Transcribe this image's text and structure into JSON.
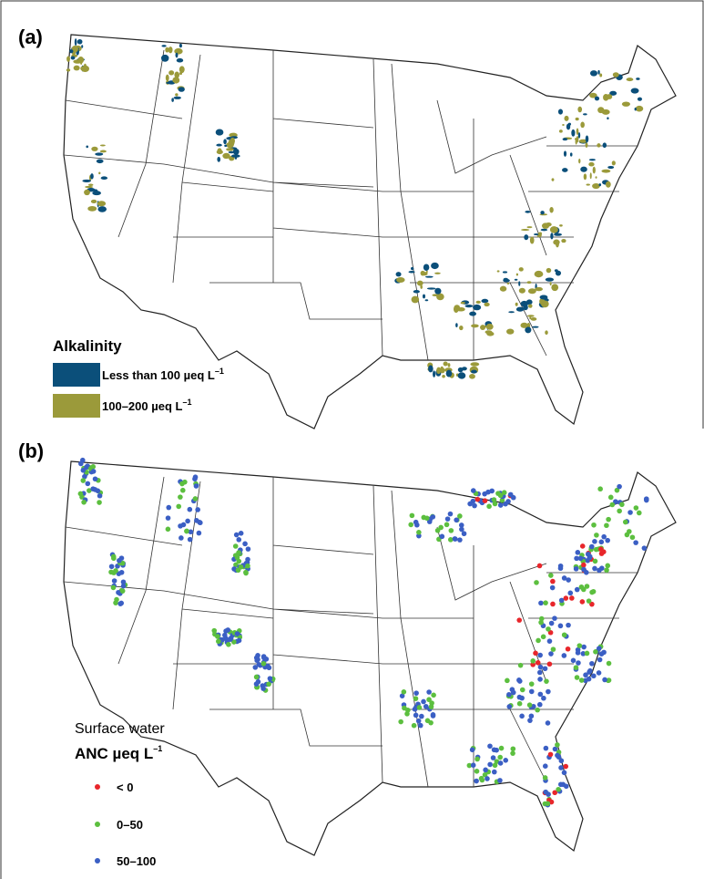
{
  "panels": [
    {
      "label": "(a)",
      "legend": {
        "title": "Alkalinity",
        "items": [
          {
            "text": "Less than 100 µeq L",
            "superscript": "–1",
            "color": "#0b4f7a"
          },
          {
            "text": "100–200 µeq L",
            "superscript": "–1",
            "color": "#9b9a3a"
          }
        ]
      }
    },
    {
      "label": "(b)",
      "legend": {
        "subtitle": "Surface water",
        "title": "ANC µeq L",
        "title_superscript": "–1",
        "items": [
          {
            "text": "< 0",
            "color": "#e8262b"
          },
          {
            "text": "0–50",
            "color": "#5cbf3f"
          },
          {
            "text": "50–100",
            "color": "#3b5fc4"
          }
        ]
      }
    }
  ]
}
